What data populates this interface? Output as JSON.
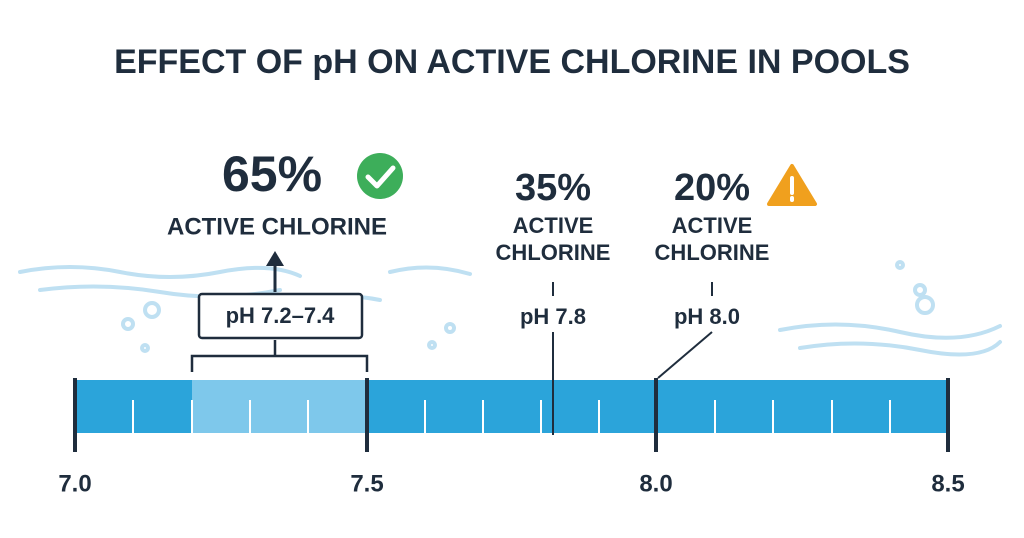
{
  "title": "EFFECT OF pH ON ACTIVE CHLORINE IN POOLS",
  "callouts": [
    {
      "percent": "65%",
      "label": "ACTIVE CHLORINE",
      "ph": "pH 7.2–7.4"
    },
    {
      "percent": "35%",
      "label_lines": [
        "ACTIVE",
        "CHLORINE"
      ],
      "ph": "pH 7.8"
    },
    {
      "percent": "20%",
      "label_lines": [
        "ACTIVE",
        "CHLORINE"
      ],
      "ph": "pH 8.0"
    }
  ],
  "scale": [
    "7.0",
    "7.5",
    "8.0",
    "8.5"
  ]
}
